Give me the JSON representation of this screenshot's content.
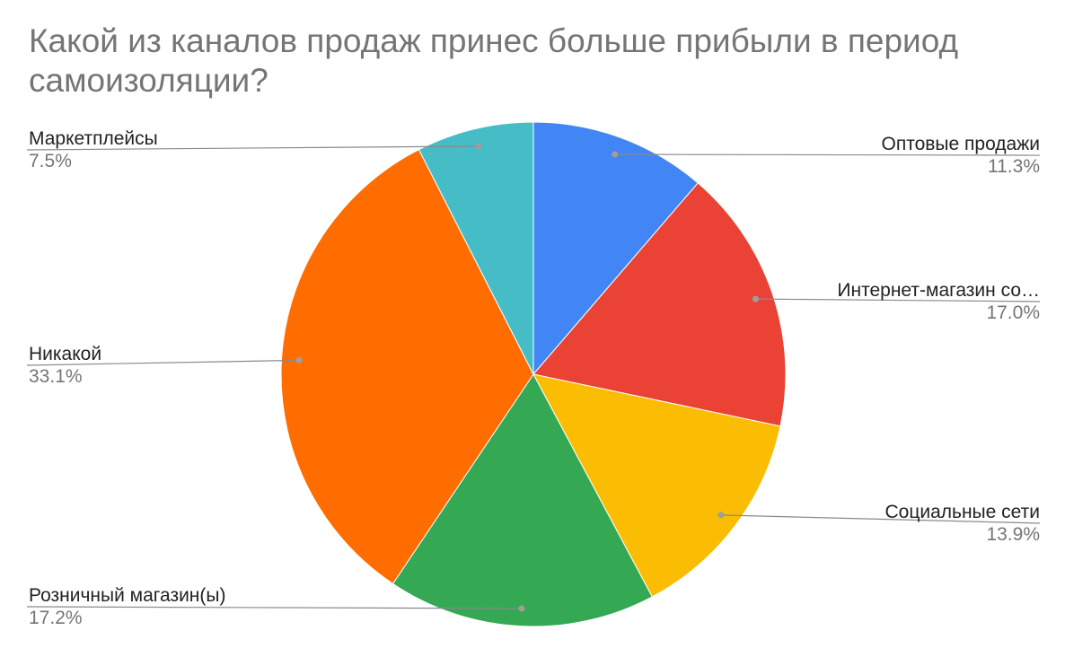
{
  "chart_data": {
    "type": "pie",
    "title": "Какой из каналов продаж принес больше прибыли в период самоизоляции?",
    "slices": [
      {
        "label": "Оптовые продажи",
        "value": 11.3,
        "value_label": "11.3%",
        "color": "#4285f4"
      },
      {
        "label": "Интернет-магазин со…",
        "value": 17.0,
        "value_label": "17.0%",
        "color": "#ea4335"
      },
      {
        "label": "Социальные сети",
        "value": 13.9,
        "value_label": "13.9%",
        "color": "#fbbc04"
      },
      {
        "label": "Розничный магазин(ы)",
        "value": 17.2,
        "value_label": "17.2%",
        "color": "#34a853"
      },
      {
        "label": "Никакой",
        "value": 33.1,
        "value_label": "33.1%",
        "color": "#ff6d01"
      },
      {
        "label": "Маркетплейсы",
        "value": 7.5,
        "value_label": "7.5%",
        "color": "#46bdc6"
      }
    ],
    "start_angle": "12 o'clock",
    "direction": "clockwise",
    "legend": "callout labels beside slices"
  }
}
